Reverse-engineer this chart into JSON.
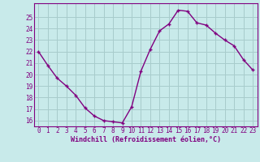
{
  "x": [
    0,
    1,
    2,
    3,
    4,
    5,
    6,
    7,
    8,
    9,
    10,
    11,
    12,
    13,
    14,
    15,
    16,
    17,
    18,
    19,
    20,
    21,
    22,
    23
  ],
  "y": [
    22.0,
    20.8,
    19.7,
    19.0,
    18.2,
    17.1,
    16.4,
    16.0,
    15.9,
    15.8,
    17.2,
    20.3,
    22.2,
    23.8,
    24.4,
    25.6,
    25.5,
    24.5,
    24.3,
    23.6,
    23.0,
    22.5,
    21.3,
    20.4
  ],
  "line_color": "#800080",
  "marker": "+",
  "bg_color": "#c8eaea",
  "grid_color": "#a8cccc",
  "xlabel": "Windchill (Refroidissement éolien,°C)",
  "tick_color": "#800080",
  "label_color": "#800080",
  "ylim": [
    15.5,
    26.2
  ],
  "xlim": [
    -0.5,
    23.5
  ],
  "yticks": [
    16,
    17,
    18,
    19,
    20,
    21,
    22,
    23,
    24,
    25
  ],
  "xticks": [
    0,
    1,
    2,
    3,
    4,
    5,
    6,
    7,
    8,
    9,
    10,
    11,
    12,
    13,
    14,
    15,
    16,
    17,
    18,
    19,
    20,
    21,
    22,
    23
  ],
  "tick_fontsize": 5.5,
  "xlabel_fontsize": 6.0,
  "linewidth": 1.0,
  "markersize": 3.5
}
